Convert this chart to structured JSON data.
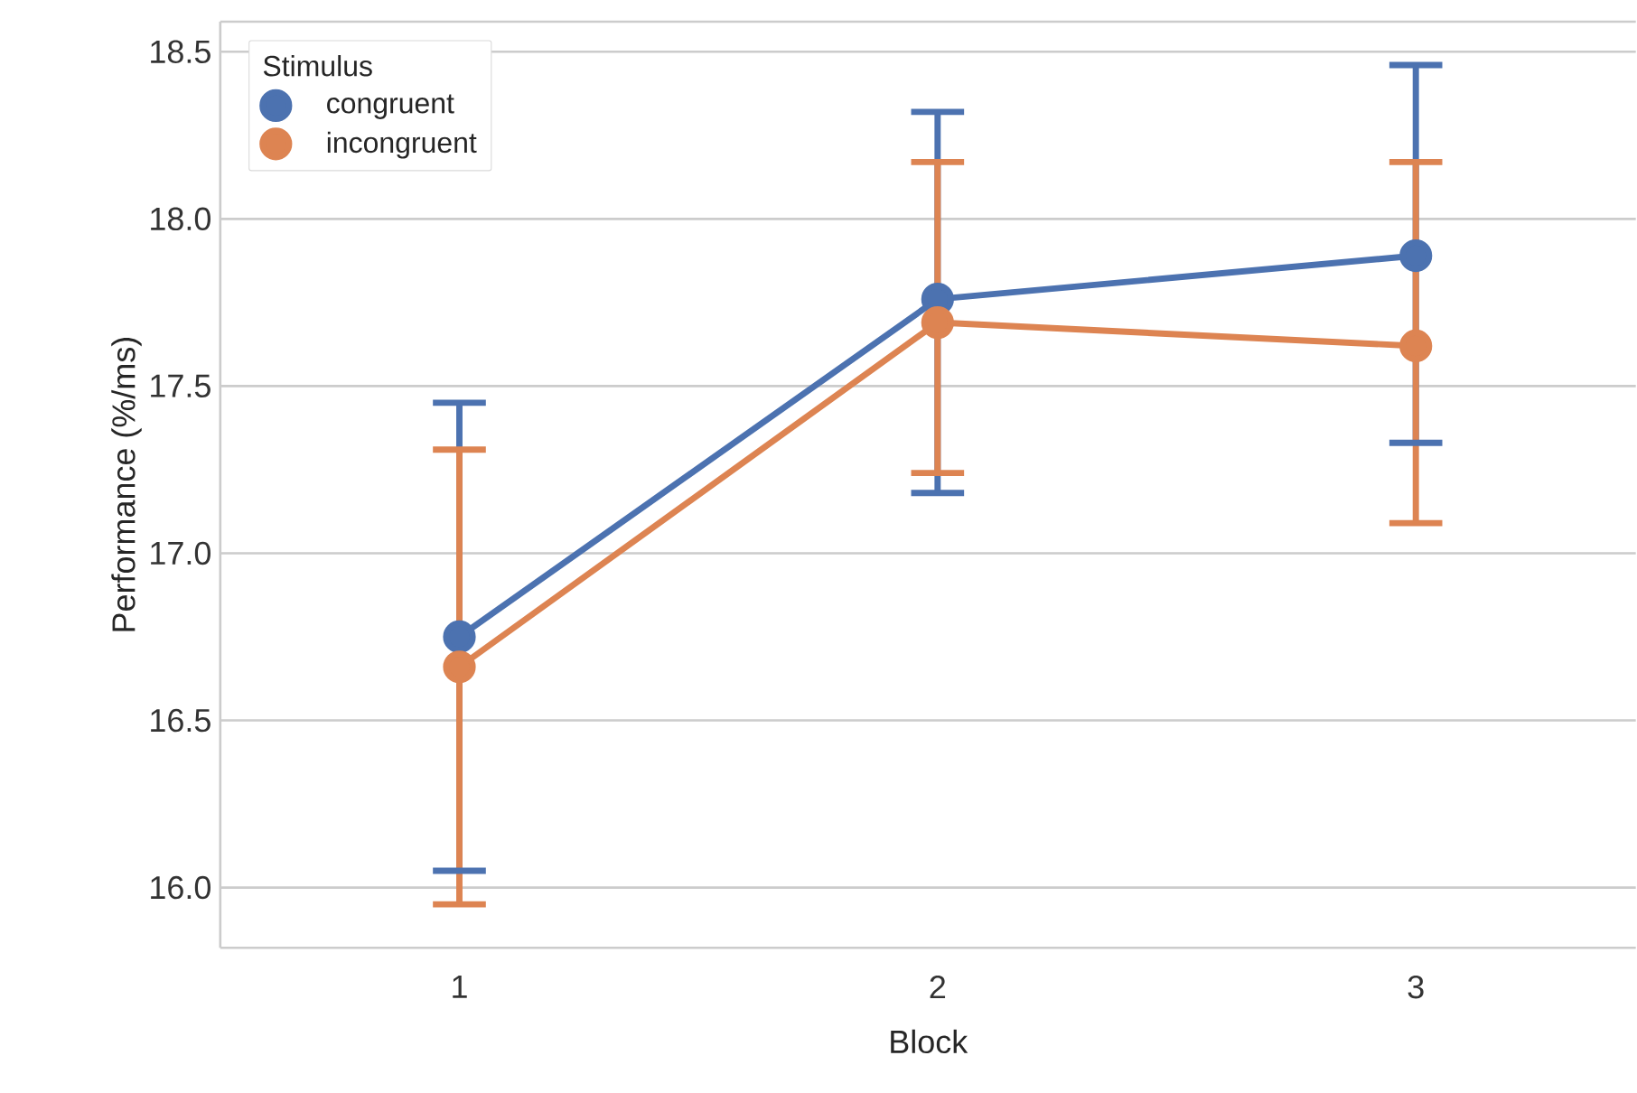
{
  "chart_data": {
    "type": "line",
    "xlabel": "Block",
    "ylabel": "Performance (%/ms)",
    "legend_title": "Stimulus",
    "categories": [
      "1",
      "2",
      "3"
    ],
    "series": [
      {
        "name": "congruent",
        "color": "#4c72b0",
        "values": [
          16.75,
          17.76,
          17.89
        ],
        "errors": [
          [
            16.05,
            17.45
          ],
          [
            17.18,
            18.32
          ],
          [
            17.33,
            18.46
          ]
        ]
      },
      {
        "name": "incongruent",
        "color": "#dd8452",
        "values": [
          16.66,
          17.69,
          17.62
        ],
        "errors": [
          [
            15.95,
            17.31
          ],
          [
            17.24,
            18.17
          ],
          [
            17.09,
            18.17
          ]
        ]
      }
    ],
    "ylim": [
      15.82,
      18.59
    ],
    "yticks": [
      {
        "value": 16.0,
        "label": "16.0"
      },
      16.5,
      {
        "value": 17.0,
        "label": "17.0"
      },
      17.5,
      {
        "value": 18.0,
        "label": "18.0"
      },
      18.5
    ],
    "grid": "y",
    "legend": "top left",
    "marker": "circle",
    "line_style": "solid"
  }
}
